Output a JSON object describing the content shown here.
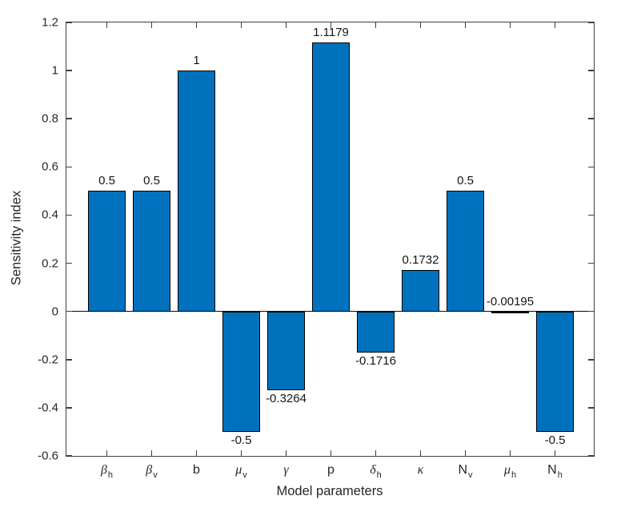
{
  "figure": {
    "background": "#ffffff"
  },
  "chart_data": {
    "type": "bar",
    "title": "",
    "xlabel": "Model parameters",
    "ylabel": "Sensitivity index",
    "ylim": [
      -0.6,
      1.2
    ],
    "yticks": [
      -0.6,
      -0.4,
      -0.2,
      0,
      0.2,
      0.4,
      0.6,
      0.8,
      1,
      1.2
    ],
    "ytick_labels": [
      "-0.6",
      "-0.4",
      "-0.2",
      "0",
      "0.2",
      "0.4",
      "0.6",
      "0.8",
      "1",
      "1.2"
    ],
    "grid": false,
    "legend": null,
    "box": true,
    "bar_color": "#0072BD",
    "bar_edge_color": "#000000",
    "axis_color": "#3f3f3f",
    "text_color": "#262626",
    "categories": [
      {
        "base": "β",
        "sub": "h",
        "greek": true
      },
      {
        "base": "β",
        "sub": "v",
        "greek": true
      },
      {
        "base": "b",
        "sub": "",
        "greek": false
      },
      {
        "base": "μ",
        "sub": "v",
        "greek": true
      },
      {
        "base": "γ",
        "sub": "",
        "greek": true
      },
      {
        "base": "p",
        "sub": "",
        "greek": false
      },
      {
        "base": "δ",
        "sub": "h",
        "greek": true
      },
      {
        "base": "κ",
        "sub": "",
        "greek": true
      },
      {
        "base": "N",
        "sub": "v",
        "greek": false
      },
      {
        "base": "μ",
        "sub": "h",
        "greek": true
      },
      {
        "base": "N",
        "sub": "h",
        "greek": false
      }
    ],
    "values": [
      0.5,
      0.5,
      1,
      -0.5,
      -0.3264,
      1.1179,
      -0.1716,
      0.1732,
      0.5,
      -0.00195,
      -0.5
    ],
    "value_labels": [
      "0.5",
      "0.5",
      "1",
      "-0.5",
      "-0.3264",
      "1.1179",
      "-0.1716",
      "0.1732",
      "0.5",
      "-0.00195",
      "-0.5"
    ]
  }
}
